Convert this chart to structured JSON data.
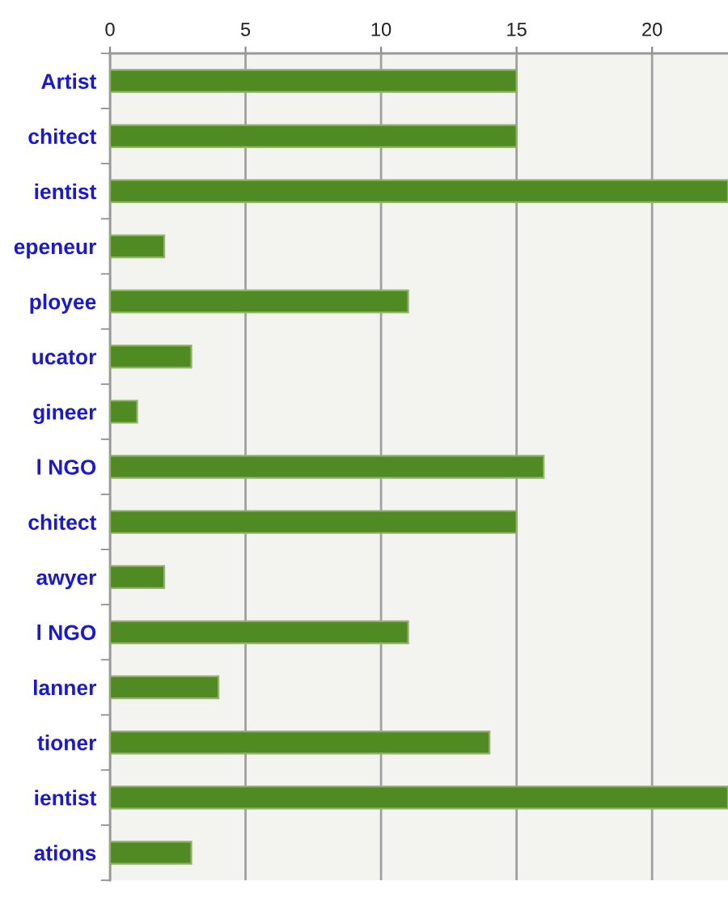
{
  "chart_data": {
    "type": "bar",
    "orientation": "horizontal",
    "categories": [
      "Artist",
      "chitect",
      "ientist",
      "epeneur",
      "ployee",
      "ucator",
      "gineer",
      "l NGO",
      "chitect",
      "awyer",
      "l NGO",
      "lanner",
      "tioner",
      "ientist",
      "ations"
    ],
    "values": [
      15,
      15,
      22.8,
      2,
      11,
      3,
      1,
      16,
      15,
      2,
      11,
      4,
      14,
      22.8,
      3
    ],
    "color": "#4f8a22",
    "xlim": [
      0,
      22.8
    ],
    "xticks": [
      0,
      5,
      10,
      15,
      20
    ],
    "grid": "x"
  }
}
